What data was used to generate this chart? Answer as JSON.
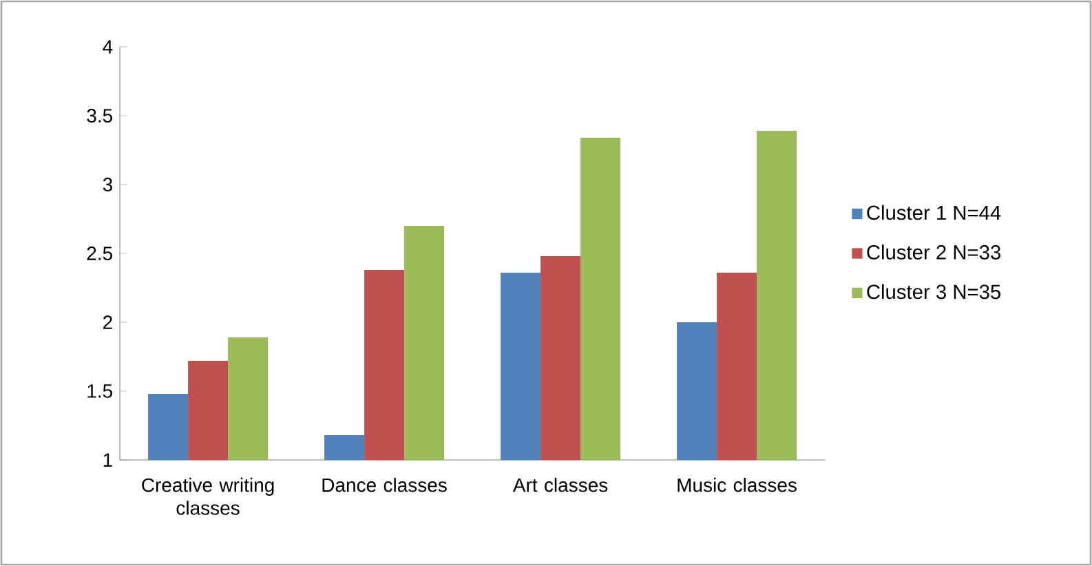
{
  "chart_data": {
    "type": "bar",
    "categories": [
      "Creative writing classes",
      "Dance classes",
      "Art classes",
      "Music classes"
    ],
    "series": [
      {
        "name": "Cluster 1 N=44",
        "color": "#4f81bd",
        "values": [
          1.48,
          1.18,
          2.36,
          2.0
        ]
      },
      {
        "name": "Cluster 2 N=33",
        "color": "#c0504d",
        "values": [
          1.72,
          2.38,
          2.48,
          2.36
        ]
      },
      {
        "name": "Cluster 3 N=35",
        "color": "#9bbb59",
        "values": [
          1.89,
          2.7,
          3.34,
          3.39
        ]
      }
    ],
    "ylim": [
      1,
      4
    ],
    "yticks": [
      1,
      1.5,
      2,
      2.5,
      3,
      3.5,
      4
    ],
    "grid": false,
    "legend": "right"
  }
}
